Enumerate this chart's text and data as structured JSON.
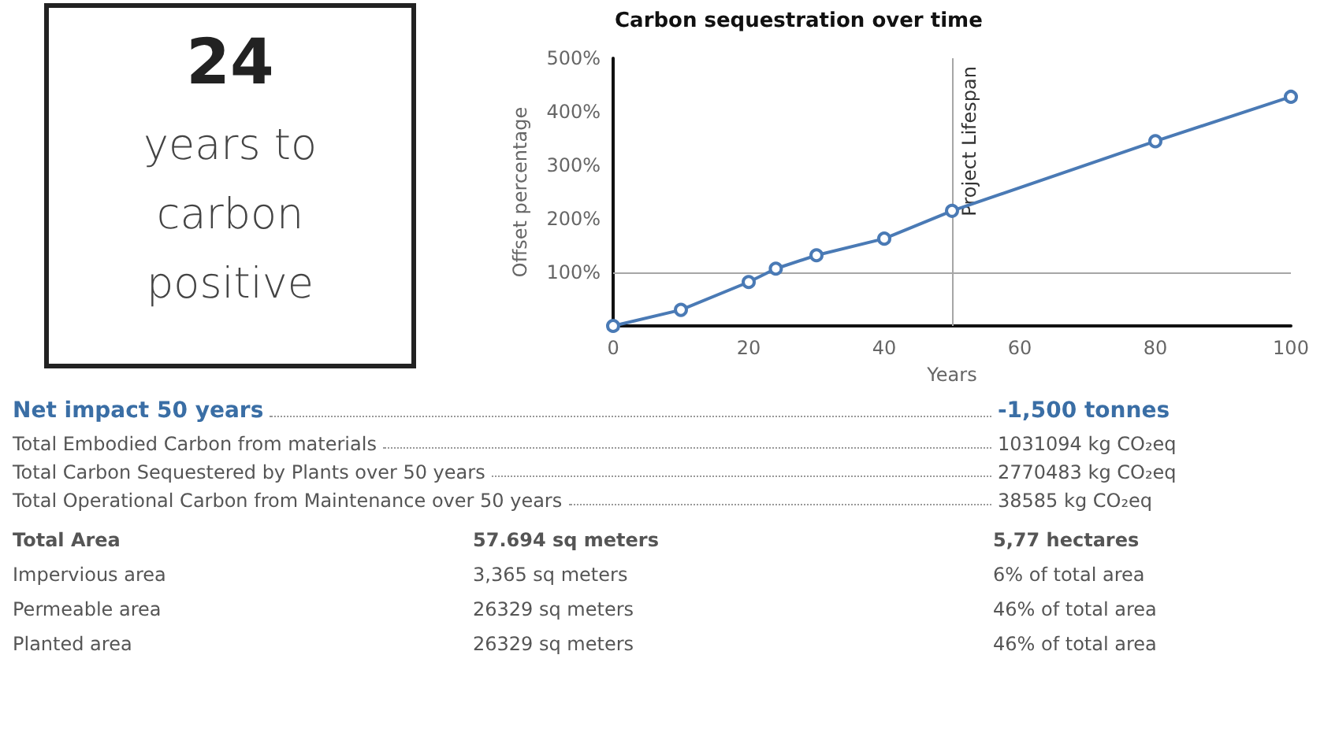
{
  "chart_data": {
    "type": "line",
    "title": "Carbon sequestration over time",
    "xlabel": "Years",
    "ylabel": "Offset percentage",
    "x": [
      0,
      10,
      20,
      24,
      30,
      40,
      50,
      80,
      100
    ],
    "series": [
      {
        "color": "#4a7ab5",
        "values": [
          0,
          30,
          82,
          107,
          132,
          163,
          215,
          345,
          428
        ]
      }
    ],
    "xlim": [
      0,
      100
    ],
    "xticks": [
      0,
      20,
      40,
      60,
      80,
      100
    ],
    "ylim": [
      0,
      500
    ],
    "yticks": [
      {
        "value": 0,
        "label": null
      },
      {
        "value": 100,
        "label": "100%"
      },
      {
        "value": 200,
        "label": "200%"
      },
      {
        "value": 300,
        "label": "300%"
      },
      {
        "value": 400,
        "label": "400%"
      },
      {
        "value": 500,
        "label": "500%"
      }
    ],
    "ref_lines": [
      {
        "axis": "y",
        "value": 100,
        "label": null,
        "color": "#a6a6a6"
      },
      {
        "axis": "x",
        "value": 50,
        "label": "Project Lifespan",
        "color": "#a6a6a6"
      }
    ],
    "grid": false,
    "marker": "circle",
    "line_style": "solid",
    "annotations": [
      "24",
      "years to carbon positive",
      "Net impact 50 years",
      "-1,500 tonnes",
      "Total Embodied Carbon from materials",
      "1031094 kg CO₂eq",
      "Total Carbon Sequestered by Plants over 50 years",
      "2770483 kg CO₂eq",
      "Total Operational Carbon from Maintenance over 50 years",
      "38585 kg CO₂eq",
      "Total Area",
      "57.694 sq meters",
      "5,77 hectares",
      "Impervious area",
      "3,365 sq meters",
      "6% of total area",
      "Permeable area",
      "26329 sq meters",
      "46% of total area",
      "Planted area",
      "26329 sq meters",
      "46% of total area"
    ]
  }
}
